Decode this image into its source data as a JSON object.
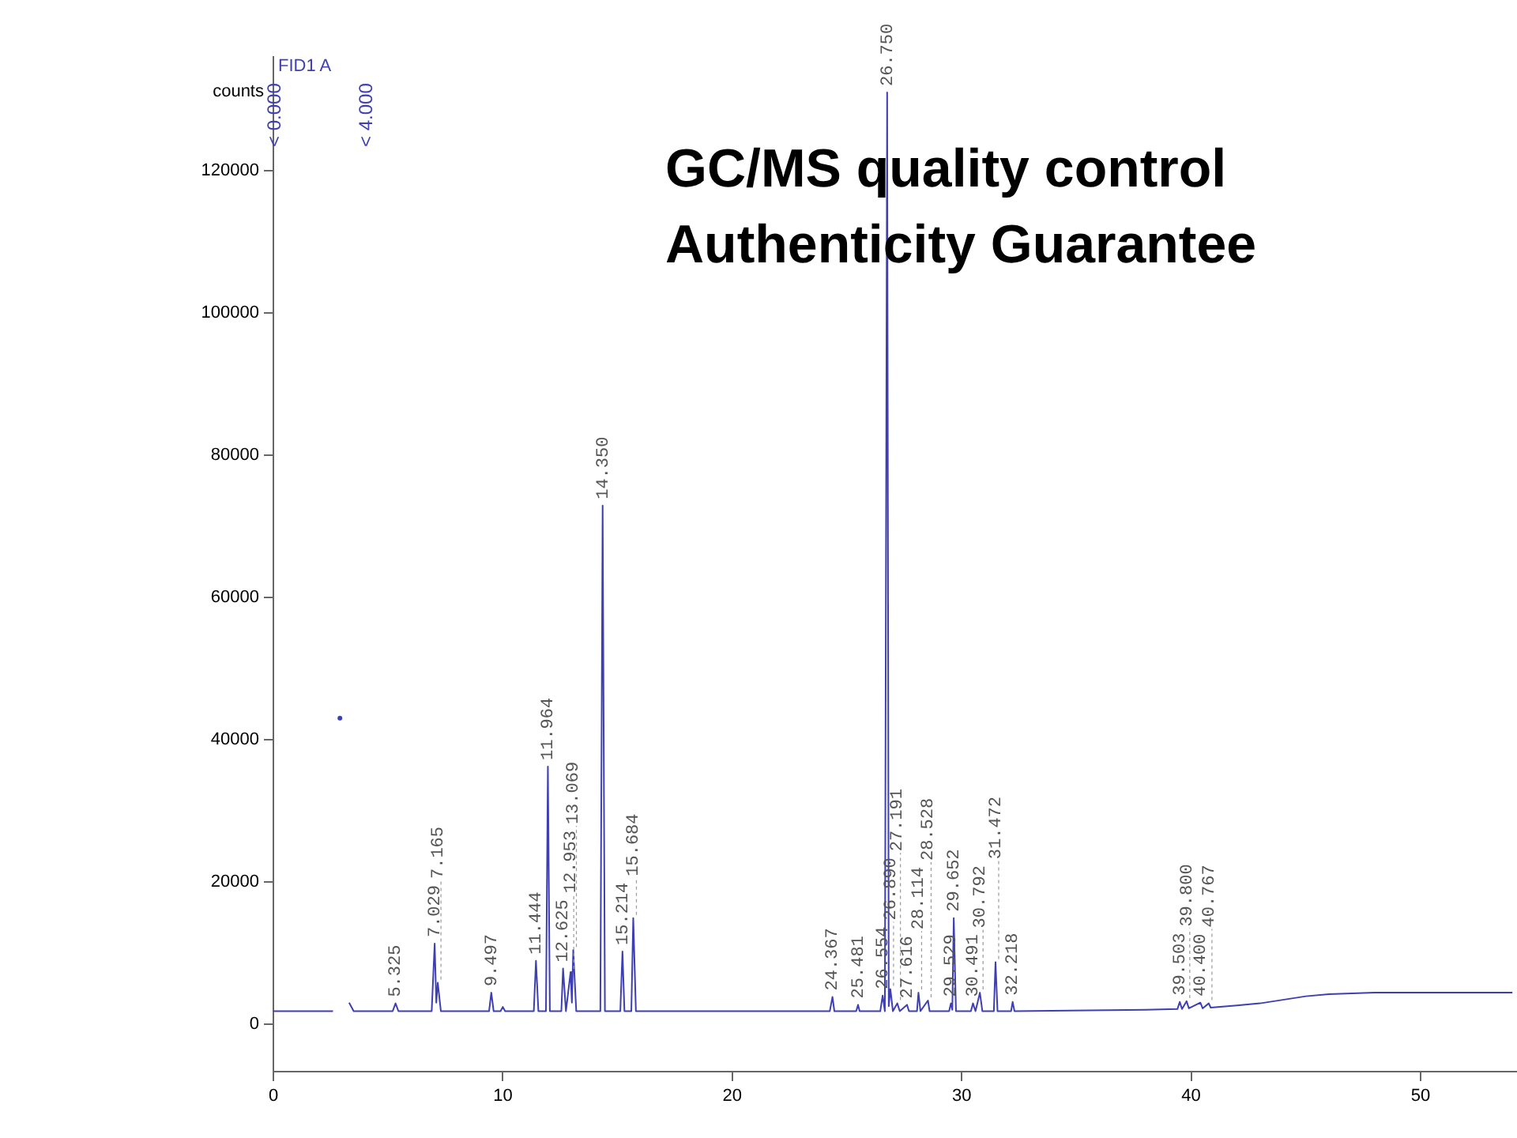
{
  "chart_data": {
    "type": "line",
    "title": "FID1 A",
    "ylabel": "counts",
    "color": "#3f3fb4",
    "x": [
      0,
      2.6,
      2.75,
      2.9,
      3.1,
      3.3,
      3.5,
      5.2,
      5.325,
      5.45,
      6.9,
      7.029,
      7.1,
      7.165,
      7.3,
      9.4,
      9.497,
      9.6,
      9.9,
      10.0,
      10.1,
      11.35,
      11.444,
      11.55,
      11.88,
      11.964,
      12.05,
      12.55,
      12.625,
      12.75,
      12.953,
      13.01,
      13.069,
      13.2,
      14.25,
      14.35,
      14.45,
      15.12,
      15.214,
      15.3,
      15.6,
      15.684,
      15.8,
      24.25,
      24.367,
      24.45,
      25.4,
      25.481,
      25.55,
      26.45,
      26.554,
      26.65,
      26.75,
      26.82,
      26.89,
      27.0,
      27.191,
      27.3,
      27.616,
      27.7,
      28.05,
      28.114,
      28.2,
      28.528,
      28.6,
      29.45,
      29.529,
      29.59,
      29.652,
      29.75,
      30.4,
      30.491,
      30.6,
      30.792,
      30.9,
      31.4,
      31.472,
      31.56,
      32.15,
      32.218,
      32.3,
      38,
      39.4,
      39.503,
      39.6,
      39.8,
      39.9,
      40.4,
      40.5,
      40.767,
      40.85,
      42,
      43,
      44,
      45,
      46,
      48,
      54
    ],
    "values": [
      1800,
      1800,
      null,
      43000,
      null,
      3000,
      1800,
      1800,
      2900,
      1800,
      1800,
      11300,
      3000,
      5800,
      1800,
      1800,
      4400,
      1800,
      1800,
      2400,
      1800,
      1800,
      8900,
      1800,
      1800,
      36200,
      1800,
      1800,
      7800,
      1800,
      7300,
      3000,
      10400,
      1800,
      1800,
      72900,
      1800,
      1800,
      10200,
      1800,
      1800,
      14900,
      1800,
      1800,
      3800,
      1800,
      1800,
      2700,
      1800,
      1800,
      4000,
      1800,
      131000,
      2500,
      4900,
      1800,
      2900,
      1800,
      2700,
      1800,
      1800,
      4400,
      1800,
      3300,
      1800,
      1800,
      2900,
      2000,
      14900,
      1800,
      1800,
      2900,
      1800,
      4400,
      1800,
      1800,
      8700,
      1800,
      1800,
      3100,
      1800,
      2000,
      2100,
      3100,
      2100,
      3200,
      2200,
      3000,
      2200,
      2900,
      2300,
      2600,
      2900,
      3400,
      3900,
      4200,
      4400,
      4400
    ],
    "xlim": [
      0,
      54.2
    ],
    "xticks": [
      0,
      10,
      20,
      30,
      40,
      50
    ],
    "ylim": [
      -6700,
      136000
    ],
    "yticks": [
      0,
      20000,
      40000,
      60000,
      80000,
      100000,
      120000
    ],
    "grid": false,
    "legend": false,
    "marker": "none",
    "line_style": "solid",
    "annotations": [
      "GC/MS quality control",
      "Authenticity Guarantee",
      "< 0.000",
      "< 4.000",
      {
        "text": "5.325",
        "x": 5.325,
        "y": 2900
      },
      {
        "text": "7.029",
        "x": 7.029,
        "y": 11300
      },
      {
        "text": "7.165",
        "x": 7.165,
        "y": 5800
      },
      {
        "text": "9.497",
        "x": 9.497,
        "y": 4400
      },
      {
        "text": "11.444",
        "x": 11.444,
        "y": 8900
      },
      {
        "text": "11.964",
        "x": 11.964,
        "y": 36200
      },
      {
        "text": "12.625",
        "x": 12.625,
        "y": 7800
      },
      {
        "text": "12.953",
        "x": 12.953,
        "y": 7300
      },
      {
        "text": "13.069",
        "x": 13.069,
        "y": 10400
      },
      {
        "text": "14.350",
        "x": 14.35,
        "y": 72900
      },
      {
        "text": "15.214",
        "x": 15.214,
        "y": 10200
      },
      {
        "text": "15.684",
        "x": 15.684,
        "y": 14900
      },
      {
        "text": "24.367",
        "x": 24.367,
        "y": 3800
      },
      {
        "text": "25.481",
        "x": 25.481,
        "y": 2700
      },
      {
        "text": "26.554",
        "x": 26.554,
        "y": 4000
      },
      {
        "text": "26.750",
        "x": 26.75,
        "y": 131000
      },
      {
        "text": "26.890",
        "x": 26.89,
        "y": 4900
      },
      {
        "text": "27.191",
        "x": 27.191,
        "y": 2900
      },
      {
        "text": "27.616",
        "x": 27.616,
        "y": 2700
      },
      {
        "text": "28.114",
        "x": 28.114,
        "y": 4400
      },
      {
        "text": "28.528",
        "x": 28.528,
        "y": 3300
      },
      {
        "text": "29.529",
        "x": 29.529,
        "y": 2900
      },
      {
        "text": "29.652",
        "x": 29.652,
        "y": 14900
      },
      {
        "text": "30.491",
        "x": 30.491,
        "y": 2900
      },
      {
        "text": "30.792",
        "x": 30.792,
        "y": 4400
      },
      {
        "text": "31.472",
        "x": 31.472,
        "y": 8700
      },
      {
        "text": "32.218",
        "x": 32.218,
        "y": 3100
      },
      {
        "text": "39.503",
        "x": 39.503,
        "y": 3100
      },
      {
        "text": "39.800",
        "x": 39.8,
        "y": 3200
      },
      {
        "text": "40.400",
        "x": 40.4,
        "y": 3000
      },
      {
        "text": "40.767",
        "x": 40.767,
        "y": 2900
      }
    ]
  }
}
